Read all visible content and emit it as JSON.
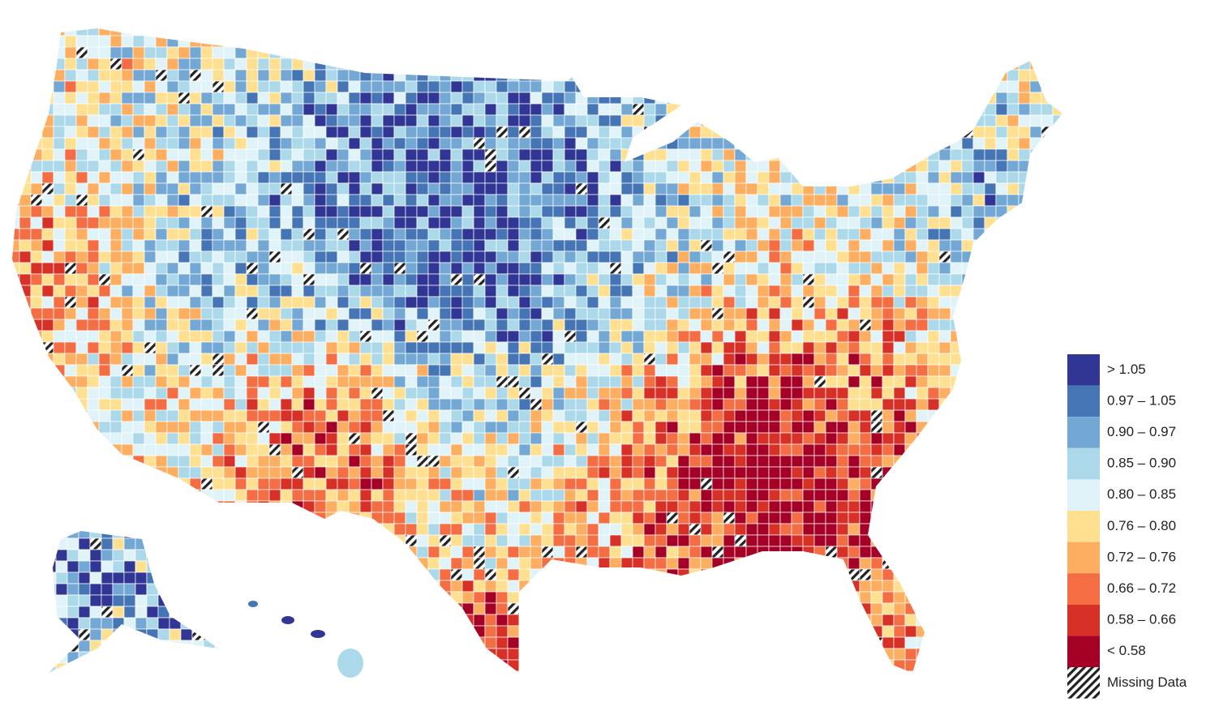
{
  "legend": {
    "items": [
      {
        "label": "> 1.05",
        "color": "#313695"
      },
      {
        "label": "0.97 – 1.05",
        "color": "#4575b4"
      },
      {
        "label": "0.90 – 0.97",
        "color": "#74a8d4"
      },
      {
        "label": "0.85 – 0.90",
        "color": "#abd9e9"
      },
      {
        "label": "0.80 – 0.85",
        "color": "#e0f3f8"
      },
      {
        "label": "0.76 – 0.80",
        "color": "#fee090"
      },
      {
        "label": "0.72 – 0.76",
        "color": "#fdae61"
      },
      {
        "label": "0.66 – 0.72",
        "color": "#f46d43"
      },
      {
        "label": "0.58 – 0.66",
        "color": "#d73027"
      },
      {
        "label": "< 0.58",
        "color": "#a50026"
      }
    ],
    "missing": "Missing Data"
  }
}
